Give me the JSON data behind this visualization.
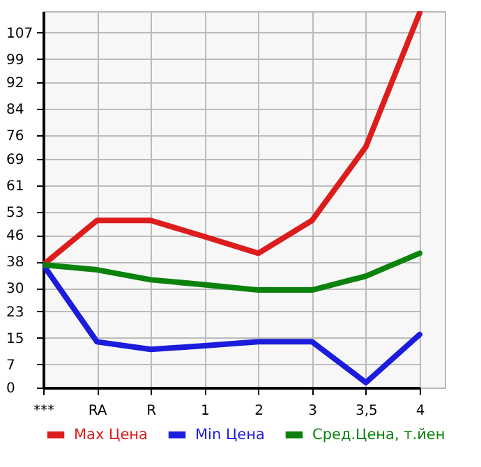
{
  "chart_data": {
    "type": "line",
    "categories": [
      "***",
      "RA",
      "R",
      "1",
      "2",
      "3",
      "3,5",
      "4"
    ],
    "series": [
      {
        "name": "Max Цена",
        "color": "#dd1c1c",
        "values": [
          37,
          50.4,
          50.4,
          45.5,
          40.5,
          50.4,
          72.6,
          113
        ]
      },
      {
        "name": "Min Цена",
        "color": "#1c1cdd",
        "values": [
          37,
          13.8,
          11.5,
          12.6,
          13.8,
          13.8,
          1.5,
          16
        ]
      },
      {
        "name": "Сред.Цена, т.йен",
        "color": "#0b820b",
        "values": [
          37,
          35.5,
          32.5,
          31,
          29.4,
          29.4,
          33.6,
          40.5
        ]
      }
    ],
    "ylim": [
      0,
      113.5
    ],
    "yticks": [
      0,
      7,
      15,
      23,
      30,
      38,
      46,
      53,
      61,
      69,
      76,
      84,
      92,
      99,
      107
    ],
    "grid": true,
    "legend": "bottom",
    "marker": "none",
    "line_style": "solid"
  }
}
